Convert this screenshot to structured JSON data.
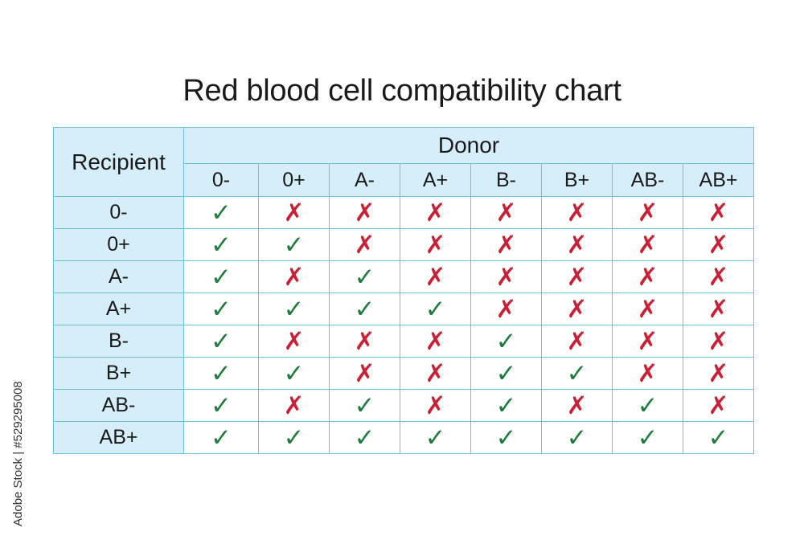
{
  "title": "Red blood cell compatibility chart",
  "table": {
    "recipient_header": "Recipient",
    "donor_header": "Donor",
    "donor_types": [
      "0-",
      "0+",
      "A-",
      "A+",
      "B-",
      "B+",
      "AB-",
      "AB+"
    ],
    "rows": [
      {
        "recipient": "0-",
        "compatible": [
          true,
          false,
          false,
          false,
          false,
          false,
          false,
          false
        ]
      },
      {
        "recipient": "0+",
        "compatible": [
          true,
          true,
          false,
          false,
          false,
          false,
          false,
          false
        ]
      },
      {
        "recipient": "A-",
        "compatible": [
          true,
          false,
          true,
          false,
          false,
          false,
          false,
          false
        ]
      },
      {
        "recipient": "A+",
        "compatible": [
          true,
          true,
          true,
          true,
          false,
          false,
          false,
          false
        ]
      },
      {
        "recipient": "B-",
        "compatible": [
          true,
          false,
          false,
          false,
          true,
          false,
          false,
          false
        ]
      },
      {
        "recipient": "B+",
        "compatible": [
          true,
          true,
          false,
          false,
          true,
          true,
          false,
          false
        ]
      },
      {
        "recipient": "AB-",
        "compatible": [
          true,
          false,
          true,
          false,
          true,
          false,
          true,
          false
        ]
      },
      {
        "recipient": "AB+",
        "compatible": [
          true,
          true,
          true,
          true,
          true,
          true,
          true,
          true
        ]
      }
    ]
  },
  "symbols": {
    "compatible": "✓",
    "incompatible": "✗",
    "compatible_color": "#1e7d3c",
    "incompatible_color": "#cc1f36",
    "compatible_icon": "check-icon",
    "incompatible_icon": "cross-icon"
  },
  "watermark": {
    "stock_id": "Adobe Stock | #529295008"
  }
}
